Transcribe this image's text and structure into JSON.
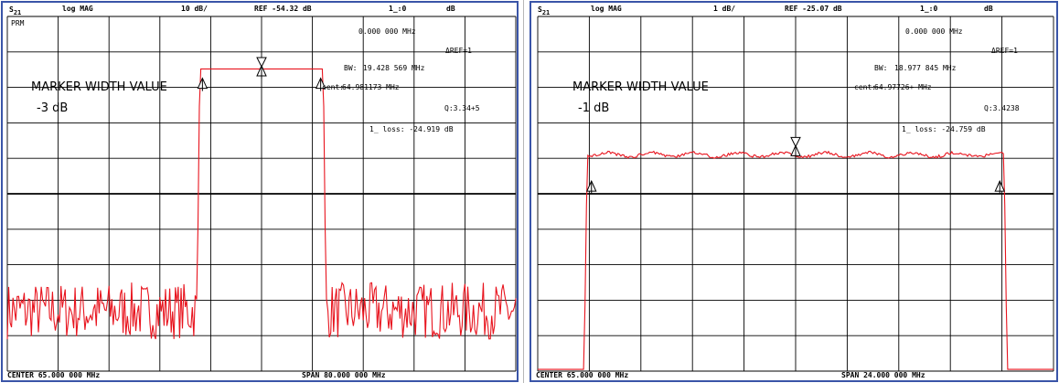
{
  "chart_data": [
    {
      "type": "line",
      "header": {
        "param": "S",
        "param_sub": "21",
        "format": "log MAG",
        "scale": "10 dB/",
        "ref": "REF -54.32 dB",
        "marker_label": "1_:0",
        "marker_unit": "dB"
      },
      "corner_label": "PRM",
      "marker_freq": "0.000 000 MHz",
      "ref_marker": "REF=1",
      "annotation": "MARKER WIDTH VALUE",
      "width_value": "-3 dB",
      "bw": "BW:",
      "bw_value": "19.428 569 MHz",
      "cent": "cent:",
      "cent_value": "64.981173 MHz",
      "q": "Q:3.34+5",
      "loss": "1_ loss: -24.919 dB",
      "center": "CENTER  65.000 000 MHz",
      "span": "SPAN  80.000 000 MHz",
      "center_mhz": 65,
      "span_mhz": 80,
      "noise_floor_div": 8.8,
      "pass_start_mhz": 55.29,
      "pass_end_mhz": 74.71,
      "pass_level_div": 1.5,
      "markers_mhz": [
        55.7,
        65.0,
        74.3
      ],
      "markers_div": [
        2.0,
        1.65,
        2.0
      ],
      "stimulus_marker_mhz": 65.0
    },
    {
      "type": "line",
      "header": {
        "param": "S",
        "param_sub": "21",
        "format": "log MAG",
        "scale": "1 dB/",
        "ref": "REF -25.07 dB",
        "marker_label": "1_:0",
        "marker_unit": "dB"
      },
      "corner_label": "",
      "marker_freq": "0.000 000 MHz",
      "ref_marker": "REF=1",
      "annotation": "MARKER WIDTH VALUE",
      "width_value": "-1 dB",
      "bw": "BW:",
      "bw_value": "18.977 845 MHz",
      "cent": "cent:",
      "cent_value": "64.97726+ MHz",
      "q": "Q:3.4238",
      "loss": "1_ loss: -24.759 dB",
      "center": "CENTER  65.000 000 MHz",
      "span": "SPAN  24.000 000 MHz",
      "center_mhz": 65,
      "span_mhz": 24,
      "noise_floor_div": 10.0,
      "pass_start_mhz": 55.3,
      "pass_end_mhz": 74.7,
      "pass_level_div": 3.9,
      "markers_mhz": [
        55.5,
        65.0,
        74.5
      ],
      "markers_div": [
        4.9,
        3.9,
        4.9
      ],
      "stimulus_marker_mhz": 65.0
    }
  ]
}
